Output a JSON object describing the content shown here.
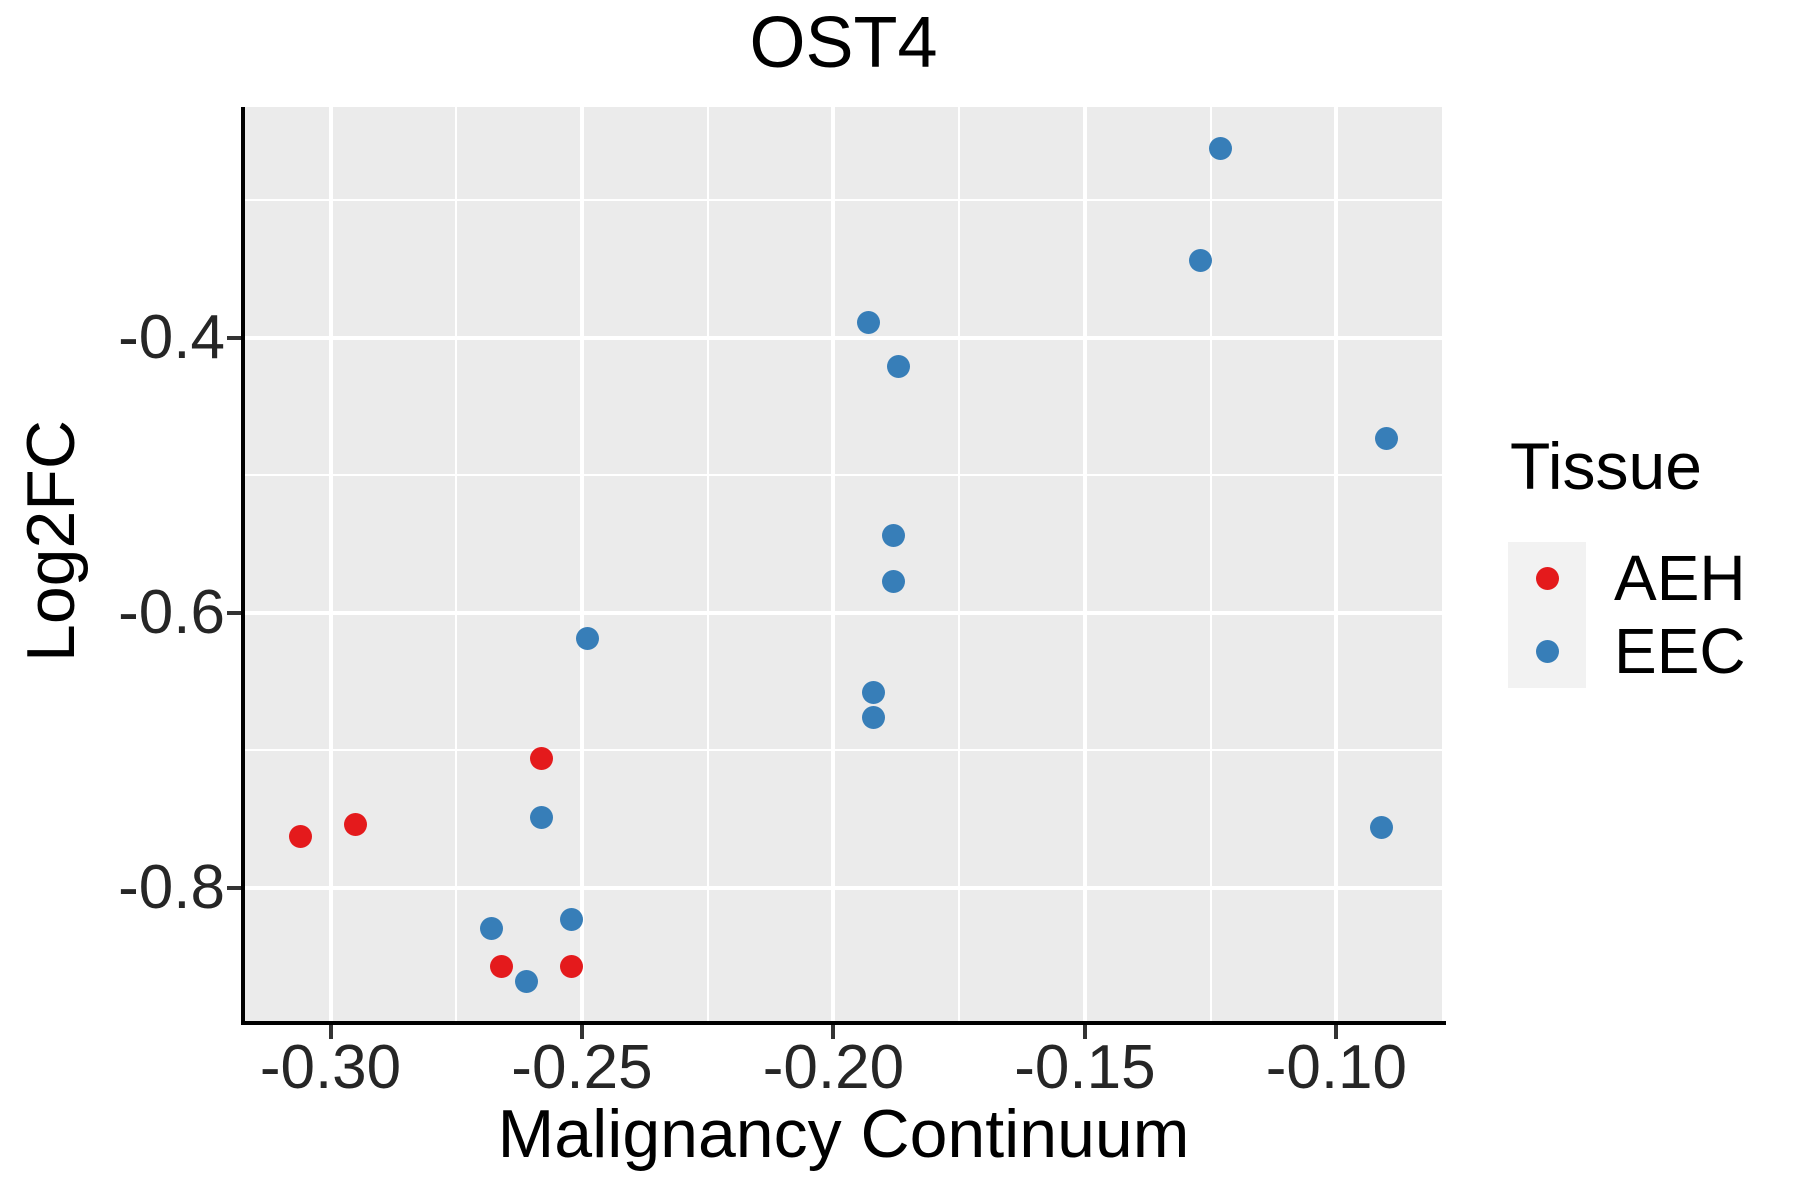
{
  "title": "OST4",
  "axes": {
    "x_label": "Malignancy Continuum",
    "y_label": "Log2FC"
  },
  "legend": {
    "title": "Tissue",
    "items": [
      {
        "label": "AEH",
        "color": "#E41A1C"
      },
      {
        "label": "EEC",
        "color": "#377EB8"
      }
    ]
  },
  "colors": {
    "panel_background": "#EBEBEB",
    "gridline": "#FFFFFF",
    "axis_line": "#000000",
    "tick_text": "#262626",
    "legend_key_background": "#F2F2F2",
    "aeh_red": "#E41A1C",
    "eec_blue": "#377EB8"
  },
  "chart_data": {
    "type": "scatter",
    "title": "OST4",
    "xlabel": "Malignancy Continuum",
    "ylabel": "Log2FC",
    "xlim": [
      -0.317,
      -0.079
    ],
    "ylim": [
      -0.897,
      -0.232
    ],
    "grid": "white major and minor gridlines on gray panel",
    "legend_position": "right",
    "x_major_ticks": [
      -0.3,
      -0.25,
      -0.2,
      -0.15,
      -0.1
    ],
    "x_tick_labels": [
      "-0.30",
      "-0.25",
      "-0.20",
      "-0.15",
      "-0.10"
    ],
    "x_minor_ticks": [
      -0.275,
      -0.225,
      -0.175,
      -0.125
    ],
    "y_major_ticks": [
      -0.4,
      -0.6,
      -0.8
    ],
    "y_tick_labels": [
      "-0.4",
      "-0.6",
      "-0.8"
    ],
    "y_minor_ticks": [
      -0.3,
      -0.5,
      -0.7
    ],
    "series": [
      {
        "name": "AEH",
        "color": "#E41A1C",
        "points": [
          [
            -0.306,
            -0.763
          ],
          [
            -0.295,
            -0.754
          ],
          [
            -0.258,
            -0.706
          ],
          [
            -0.266,
            -0.857
          ],
          [
            -0.252,
            -0.857
          ]
        ]
      },
      {
        "name": "EEC",
        "color": "#377EB8",
        "points": [
          [
            -0.123,
            -0.262
          ],
          [
            -0.127,
            -0.344
          ],
          [
            -0.193,
            -0.389
          ],
          [
            -0.187,
            -0.421
          ],
          [
            -0.188,
            -0.544
          ],
          [
            -0.188,
            -0.577
          ],
          [
            -0.192,
            -0.658
          ],
          [
            -0.192,
            -0.676
          ],
          [
            -0.09,
            -0.473
          ],
          [
            -0.091,
            -0.756
          ],
          [
            -0.249,
            -0.619
          ],
          [
            -0.258,
            -0.749
          ],
          [
            -0.268,
            -0.83
          ],
          [
            -0.252,
            -0.823
          ],
          [
            -0.261,
            -0.868
          ]
        ]
      }
    ]
  }
}
